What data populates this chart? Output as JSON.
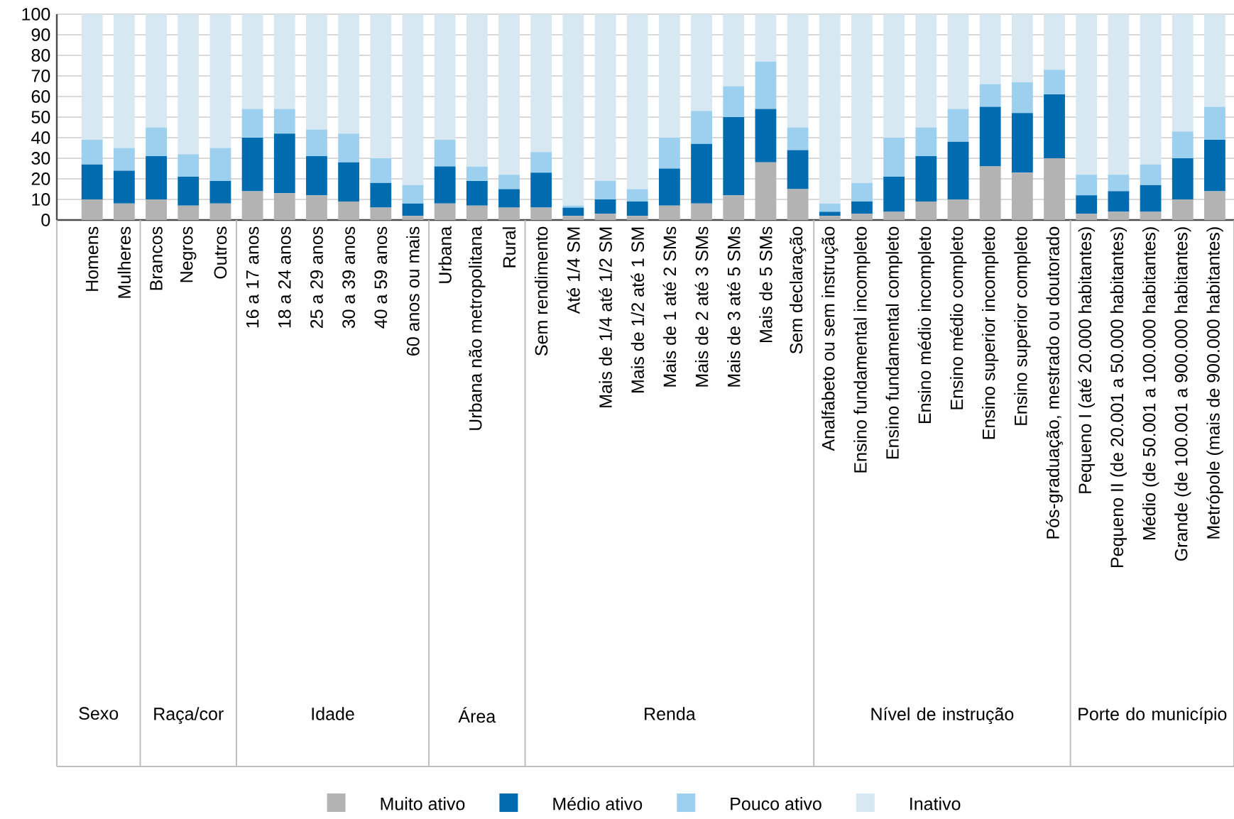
{
  "chart_data": {
    "type": "bar",
    "stacked": true,
    "legend": "bottom",
    "grid": "y",
    "categories": [
      "Homens",
      "Mulheres",
      "Brancos",
      "Negros",
      "Outros",
      "16 a 17 anos",
      "18 a 24 anos",
      "25 a 29 anos",
      "30 a 39 anos",
      "40 a 59 anos",
      "60 anos ou mais",
      "Urbana",
      "Urbana não metropolitana",
      "Rural",
      "Sem rendimento",
      "Até 1/4 SM",
      "Mais de 1/4 até 1/2 SM",
      "Mais de 1/2 até 1 SM",
      "Mais de 1 até 2 SMs",
      "Mais de 2 até 3 SMs",
      "Mais de 3 até 5 SMs",
      "Mais de 5 SMs",
      "Sem declaração",
      "Analfabeto ou sem instrução",
      "Ensino fundamental incompleto",
      "Ensino fundamental completo",
      "Ensino médio incompleto",
      "Ensino médio completo",
      "Ensino superior incompleto",
      "Ensino superior completo",
      "Pós-graduação, mestrado ou  doutorado",
      "Pequeno I (até 20.000 habitantes)",
      "Pequeno II (de 20.001 a 50.000 habitantes)",
      "Médio (de 50.001 a 100.000 habitantes)",
      "Grande (de 100.001 a 900.000 habitantes)",
      "Metrópole (mais de 900.000 habitantes)"
    ],
    "series": [
      {
        "name": "Muito ativo",
        "color": "#b3b3b3",
        "values": [
          10,
          8,
          10,
          7,
          8,
          14,
          13,
          12,
          9,
          6,
          2,
          8,
          7,
          6,
          6,
          2,
          3,
          2,
          7,
          8,
          12,
          28,
          15,
          2,
          3,
          4,
          9,
          10,
          26,
          23,
          30,
          3,
          4,
          4,
          10,
          14
        ]
      },
      {
        "name": "Médio ativo",
        "color": "#006cb0",
        "values": [
          17,
          16,
          21,
          14,
          11,
          26,
          29,
          19,
          19,
          12,
          6,
          18,
          12,
          9,
          17,
          4,
          7,
          7,
          18,
          29,
          38,
          26,
          19,
          2,
          6,
          17,
          22,
          28,
          29,
          29,
          31,
          9,
          10,
          13,
          20,
          25
        ]
      },
      {
        "name": "Pouco ativo",
        "color": "#9dd0ef",
        "values": [
          12,
          11,
          14,
          11,
          16,
          14,
          12,
          13,
          14,
          12,
          9,
          13,
          7,
          7,
          10,
          1,
          9,
          6,
          15,
          16,
          15,
          23,
          11,
          4,
          9,
          19,
          14,
          16,
          11,
          15,
          12,
          10,
          8,
          10,
          13,
          16
        ]
      },
      {
        "name": "Inativo",
        "color": "#d8e8f3",
        "values": [
          61,
          65,
          55,
          68,
          65,
          46,
          46,
          56,
          58,
          70,
          83,
          61,
          74,
          78,
          67,
          93,
          81,
          85,
          60,
          47,
          35,
          23,
          55,
          92,
          82,
          60,
          55,
          46,
          34,
          33,
          27,
          78,
          78,
          73,
          57,
          45
        ]
      }
    ],
    "ylim": [
      0,
      100
    ],
    "yticks": [
      0,
      10,
      20,
      30,
      40,
      50,
      60,
      70,
      80,
      90,
      100
    ],
    "annotations": [
      "Sexo",
      "Raça/cor",
      "Idade",
      "Área",
      "Renda",
      "Nível de instrução",
      "Porte do município"
    ]
  }
}
